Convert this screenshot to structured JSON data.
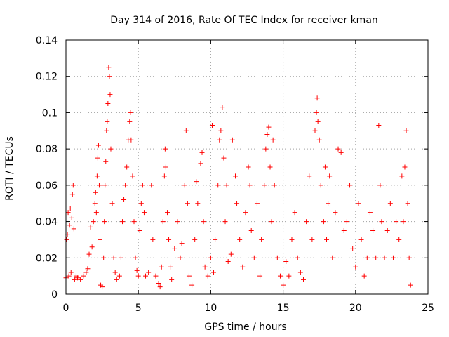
{
  "chart_data": {
    "type": "scatter",
    "title": "Day 314 of 2016, Rate Of TEC Index for receiver kman",
    "xlabel": "GPS time / hours",
    "ylabel": "ROTI / TECUs",
    "xlim": [
      0,
      25
    ],
    "ylim": [
      0,
      0.14
    ],
    "x_ticks": [
      0,
      5,
      10,
      15,
      20,
      25
    ],
    "x_tick_labels": [
      "0",
      "5",
      "10",
      "15",
      "20",
      "25"
    ],
    "y_ticks": [
      0,
      0.02,
      0.04,
      0.06,
      0.08,
      0.1,
      0.12,
      0.14
    ],
    "y_tick_labels": [
      "0",
      "0.02",
      "0.04",
      "0.06",
      "0.08",
      "0.1",
      "0.12",
      "0.14"
    ],
    "grid": true,
    "marker": "+",
    "marker_color": "#ff0000",
    "series": [
      {
        "name": "ROTI",
        "points": [
          [
            0.0,
            0.009
          ],
          [
            0.05,
            0.03
          ],
          [
            0.1,
            0.033
          ],
          [
            0.15,
            0.045
          ],
          [
            0.2,
            0.01
          ],
          [
            0.25,
            0.038
          ],
          [
            0.3,
            0.047
          ],
          [
            0.35,
            0.012
          ],
          [
            0.4,
            0.042
          ],
          [
            0.45,
            0.055
          ],
          [
            0.5,
            0.06
          ],
          [
            0.55,
            0.036
          ],
          [
            0.6,
            0.008
          ],
          [
            0.7,
            0.01
          ],
          [
            0.8,
            0.009
          ],
          [
            1.0,
            0.008
          ],
          [
            1.2,
            0.01
          ],
          [
            1.4,
            0.012
          ],
          [
            1.5,
            0.014
          ],
          [
            1.6,
            0.022
          ],
          [
            1.7,
            0.037
          ],
          [
            1.8,
            0.026
          ],
          [
            1.9,
            0.04
          ],
          [
            2.0,
            0.05
          ],
          [
            2.05,
            0.056
          ],
          [
            2.1,
            0.045
          ],
          [
            2.15,
            0.065
          ],
          [
            2.2,
            0.075
          ],
          [
            2.25,
            0.082
          ],
          [
            2.3,
            0.06
          ],
          [
            2.35,
            0.03
          ],
          [
            2.4,
            0.005
          ],
          [
            2.5,
            0.004
          ],
          [
            2.6,
            0.02
          ],
          [
            2.65,
            0.04
          ],
          [
            2.7,
            0.06
          ],
          [
            2.75,
            0.073
          ],
          [
            2.8,
            0.09
          ],
          [
            2.85,
            0.095
          ],
          [
            2.9,
            0.105
          ],
          [
            2.95,
            0.125
          ],
          [
            3.0,
            0.12
          ],
          [
            3.05,
            0.11
          ],
          [
            3.1,
            0.08
          ],
          [
            3.2,
            0.05
          ],
          [
            3.3,
            0.02
          ],
          [
            3.4,
            0.012
          ],
          [
            3.5,
            0.008
          ],
          [
            3.7,
            0.01
          ],
          [
            3.8,
            0.02
          ],
          [
            3.9,
            0.04
          ],
          [
            4.0,
            0.052
          ],
          [
            4.1,
            0.06
          ],
          [
            4.2,
            0.07
          ],
          [
            4.3,
            0.085
          ],
          [
            4.4,
            0.095
          ],
          [
            4.45,
            0.1
          ],
          [
            4.5,
            0.085
          ],
          [
            4.6,
            0.065
          ],
          [
            4.7,
            0.04
          ],
          [
            4.8,
            0.02
          ],
          [
            4.9,
            0.013
          ],
          [
            5.0,
            0.01
          ],
          [
            5.1,
            0.035
          ],
          [
            5.2,
            0.05
          ],
          [
            5.3,
            0.06
          ],
          [
            5.4,
            0.045
          ],
          [
            5.5,
            0.01
          ],
          [
            5.7,
            0.012
          ],
          [
            5.9,
            0.06
          ],
          [
            6.0,
            0.03
          ],
          [
            6.2,
            0.01
          ],
          [
            6.4,
            0.006
          ],
          [
            6.5,
            0.004
          ],
          [
            6.6,
            0.015
          ],
          [
            6.7,
            0.04
          ],
          [
            6.8,
            0.065
          ],
          [
            6.85,
            0.08
          ],
          [
            6.9,
            0.07
          ],
          [
            7.0,
            0.045
          ],
          [
            7.1,
            0.03
          ],
          [
            7.2,
            0.015
          ],
          [
            7.3,
            0.008
          ],
          [
            7.5,
            0.025
          ],
          [
            7.7,
            0.04
          ],
          [
            7.9,
            0.02
          ],
          [
            8.0,
            0.028
          ],
          [
            8.2,
            0.06
          ],
          [
            8.3,
            0.09
          ],
          [
            8.4,
            0.05
          ],
          [
            8.5,
            0.01
          ],
          [
            8.7,
            0.005
          ],
          [
            8.9,
            0.03
          ],
          [
            9.0,
            0.062
          ],
          [
            9.1,
            0.05
          ],
          [
            9.3,
            0.072
          ],
          [
            9.4,
            0.078
          ],
          [
            9.5,
            0.04
          ],
          [
            9.6,
            0.015
          ],
          [
            9.8,
            0.01
          ],
          [
            10.0,
            0.02
          ],
          [
            10.1,
            0.093
          ],
          [
            10.2,
            0.012
          ],
          [
            10.3,
            0.03
          ],
          [
            10.5,
            0.06
          ],
          [
            10.6,
            0.085
          ],
          [
            10.7,
            0.09
          ],
          [
            10.8,
            0.103
          ],
          [
            10.9,
            0.075
          ],
          [
            11.0,
            0.04
          ],
          [
            11.1,
            0.06
          ],
          [
            11.2,
            0.018
          ],
          [
            11.4,
            0.022
          ],
          [
            11.5,
            0.085
          ],
          [
            11.7,
            0.065
          ],
          [
            11.8,
            0.05
          ],
          [
            12.0,
            0.03
          ],
          [
            12.2,
            0.015
          ],
          [
            12.4,
            0.045
          ],
          [
            12.6,
            0.07
          ],
          [
            12.7,
            0.06
          ],
          [
            12.8,
            0.035
          ],
          [
            13.0,
            0.02
          ],
          [
            13.2,
            0.05
          ],
          [
            13.4,
            0.01
          ],
          [
            13.5,
            0.03
          ],
          [
            13.7,
            0.06
          ],
          [
            13.8,
            0.08
          ],
          [
            13.9,
            0.088
          ],
          [
            14.0,
            0.092
          ],
          [
            14.1,
            0.07
          ],
          [
            14.2,
            0.04
          ],
          [
            14.3,
            0.085
          ],
          [
            14.4,
            0.06
          ],
          [
            14.6,
            0.02
          ],
          [
            14.8,
            0.01
          ],
          [
            15.0,
            0.005
          ],
          [
            15.2,
            0.018
          ],
          [
            15.4,
            0.01
          ],
          [
            15.6,
            0.03
          ],
          [
            15.8,
            0.045
          ],
          [
            16.0,
            0.02
          ],
          [
            16.2,
            0.012
          ],
          [
            16.4,
            0.008
          ],
          [
            16.6,
            0.04
          ],
          [
            16.8,
            0.065
          ],
          [
            17.0,
            0.03
          ],
          [
            17.2,
            0.09
          ],
          [
            17.3,
            0.1
          ],
          [
            17.35,
            0.108
          ],
          [
            17.4,
            0.095
          ],
          [
            17.5,
            0.085
          ],
          [
            17.6,
            0.06
          ],
          [
            17.8,
            0.04
          ],
          [
            17.9,
            0.07
          ],
          [
            18.0,
            0.03
          ],
          [
            18.1,
            0.05
          ],
          [
            18.2,
            0.065
          ],
          [
            18.4,
            0.02
          ],
          [
            18.6,
            0.045
          ],
          [
            18.8,
            0.08
          ],
          [
            19.0,
            0.078
          ],
          [
            19.2,
            0.035
          ],
          [
            19.4,
            0.04
          ],
          [
            19.6,
            0.06
          ],
          [
            19.8,
            0.025
          ],
          [
            20.0,
            0.015
          ],
          [
            20.2,
            0.05
          ],
          [
            20.4,
            0.03
          ],
          [
            20.6,
            0.01
          ],
          [
            20.8,
            0.02
          ],
          [
            21.0,
            0.045
          ],
          [
            21.2,
            0.035
          ],
          [
            21.4,
            0.02
          ],
          [
            21.6,
            0.093
          ],
          [
            21.7,
            0.06
          ],
          [
            21.8,
            0.04
          ],
          [
            22.0,
            0.02
          ],
          [
            22.2,
            0.035
          ],
          [
            22.4,
            0.05
          ],
          [
            22.6,
            0.02
          ],
          [
            22.8,
            0.04
          ],
          [
            23.0,
            0.03
          ],
          [
            23.2,
            0.065
          ],
          [
            23.3,
            0.04
          ],
          [
            23.4,
            0.07
          ],
          [
            23.5,
            0.09
          ],
          [
            23.6,
            0.05
          ],
          [
            23.7,
            0.02
          ],
          [
            23.8,
            0.005
          ]
        ]
      }
    ]
  }
}
